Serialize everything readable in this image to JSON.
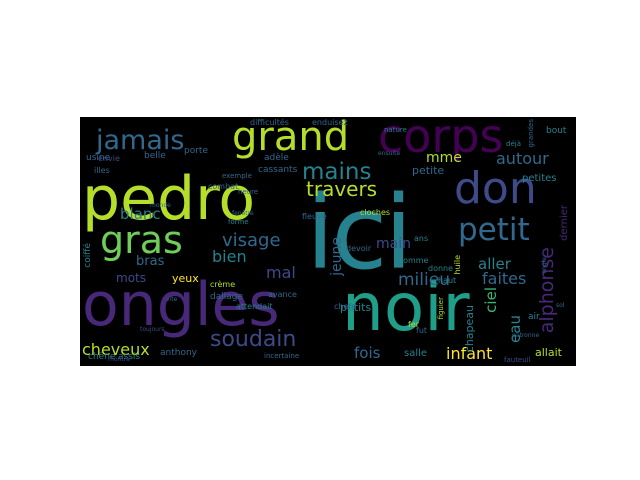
{
  "colors": {
    "figure_background": "#ffffff",
    "cloud_background": "#000000",
    "palette": [
      "#440154",
      "#482878",
      "#3e4a89",
      "#31688e",
      "#26828e",
      "#1f9e89",
      "#35b779",
      "#6ece58",
      "#b5de2b",
      "#fde725"
    ]
  },
  "words": {
    "ici": "ici",
    "pedro": "pedro",
    "noir": "noir",
    "ongles": "ongles",
    "corps": "corps",
    "don": "don",
    "grand": "grand",
    "gras": "gras",
    "petit": "petit",
    "jamais": "jamais",
    "mains": "mains",
    "soudain": "soudain",
    "visage": "visage",
    "travers": "travers",
    "alphonse": "alphonse",
    "autour": "autour",
    "cheveux": "cheveux",
    "infant": "infant",
    "fois": "fois",
    "faites": "faites",
    "aller": "aller",
    "bien": "bien",
    "blanc": "blanc",
    "milieu": "milieu",
    "main": "main",
    "mme": "mme",
    "mal": "mal",
    "bras": "bras",
    "ciel": "ciel",
    "eau": "eau",
    "petite": "petite",
    "jeune": "jeune",
    "mots": "mots",
    "petits": "petits",
    "salle": "salle",
    "yeux": "yeux",
    "chapeau": "chapeau",
    "allait": "allait",
    "dernier": "dernier",
    "petites": "petites",
    "bout": "bout",
    "anthony": "anthony",
    "assis": "assis",
    "chene": "chêne",
    "adele": "adèle",
    "porte": "porte",
    "belle": "belle",
    "cassants": "cassants",
    "usine": "usine",
    "envie": "envie",
    "difficultes": "difficultés",
    "enduisez": "enduisez",
    "nature": "nature",
    "deja": "déjà",
    "dallage": "dallage",
    "attendait": "attendait",
    "creme": "crème",
    "avance": "avance",
    "combat": "combat",
    "cloches": "cloches",
    "chefs": "chefs",
    "devoir": "devoir",
    "homme": "homme",
    "donne": "donne",
    "ans": "ans",
    "fer": "fer",
    "fut": "fut",
    "air": "air",
    "haut": "haut",
    "huile": "huile",
    "fleuve": "fleuve",
    "exemple": "exemple",
    "coiffe": "coiffé",
    "incertaine": "incertaine",
    "fauteuil": "fauteuil",
    "figuier": "figuier",
    "montra": "montra",
    "illes": "illes",
    "monde": "monde",
    "grandes": "grandes",
    "forme": "forme",
    "heure": "heure",
    "ongle": "ongle",
    "patronne": "patronne",
    "toujours": "toujours",
    "fenetre": "fenêtre",
    "vite": "vite",
    "sol": "sol",
    "ensuite": "ensuite"
  }
}
